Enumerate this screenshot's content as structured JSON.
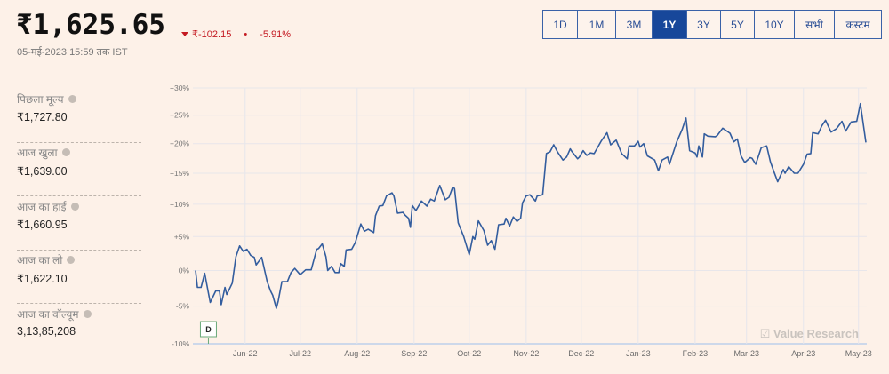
{
  "header": {
    "price": "₹1,625.65",
    "change_abs": "₹-102.15",
    "separator": "•",
    "change_pct": "-5.91%",
    "as_of": "05-मई-2023 15:59 तक IST"
  },
  "ranges": {
    "options": [
      "1D",
      "1M",
      "3M",
      "1Y",
      "3Y",
      "5Y",
      "10Y",
      "सभी",
      "कस्टम"
    ],
    "selected": "1Y"
  },
  "stats": [
    {
      "label": "पिछला मूल्य",
      "value": "₹1,727.80"
    },
    {
      "label": "आज खुला",
      "value": "₹1,639.00"
    },
    {
      "label": "आज का हाई",
      "value": "₹1,660.95"
    },
    {
      "label": "आज का लो",
      "value": "₹1,622.10"
    },
    {
      "label": "आज का वॉल्यूम",
      "value": "3,13,85,208"
    }
  ],
  "colors": {
    "line": "#335d9e",
    "negative": "#c41a22",
    "accent": "#17479a",
    "marker": "#6aaa7a"
  },
  "chart_data": {
    "type": "line",
    "yscale": "log-return",
    "ylim": [
      -10,
      30
    ],
    "y_ticks": [
      "+30%",
      "+25%",
      "+20%",
      "+15%",
      "+10%",
      "+5%",
      "0%",
      "-5%",
      "-10%"
    ],
    "y_tick_values": [
      30,
      25,
      20,
      15,
      10,
      5,
      0,
      -5,
      -10
    ],
    "x_ticks": [
      "Jun-22",
      "Jul-22",
      "Aug-22",
      "Sep-22",
      "Oct-22",
      "Nov-22",
      "Dec-22",
      "Jan-23",
      "Feb-23",
      "Mar-23",
      "Apr-23",
      "May-23"
    ],
    "x_tick_dates": [
      "2022-06-01",
      "2022-07-01",
      "2022-08-01",
      "2022-09-01",
      "2022-10-01",
      "2022-11-01",
      "2022-12-01",
      "2023-01-01",
      "2023-02-01",
      "2023-03-01",
      "2023-04-01",
      "2023-05-01"
    ],
    "xlim": [
      "2022-05-05",
      "2023-05-05"
    ],
    "grid": true,
    "marker": {
      "label": "D",
      "date": "2022-05-12"
    },
    "watermark": "Value Research",
    "series": [
      {
        "points": [
          [
            "2022-05-05",
            0
          ],
          [
            "2022-05-06",
            -2.4
          ],
          [
            "2022-05-08",
            -2.4
          ],
          [
            "2022-05-10",
            -0.4
          ],
          [
            "2022-05-12",
            -3.2
          ],
          [
            "2022-05-13",
            -4.5
          ],
          [
            "2022-05-16",
            -2.9
          ],
          [
            "2022-05-18",
            -2.9
          ],
          [
            "2022-05-19",
            -4.8
          ],
          [
            "2022-05-21",
            -2.4
          ],
          [
            "2022-05-22",
            -3.4
          ],
          [
            "2022-05-25",
            -1.8
          ],
          [
            "2022-05-27",
            2
          ],
          [
            "2022-05-29",
            3.6
          ],
          [
            "2022-05-31",
            2.8
          ],
          [
            "2022-06-02",
            3.1
          ],
          [
            "2022-06-04",
            2.2
          ],
          [
            "2022-06-06",
            1.9
          ],
          [
            "2022-06-07",
            0.8
          ],
          [
            "2022-06-10",
            1.9
          ],
          [
            "2022-06-13",
            -1.6
          ],
          [
            "2022-06-15",
            -3
          ],
          [
            "2022-06-16",
            -3.5
          ],
          [
            "2022-06-18",
            -5.3
          ],
          [
            "2022-06-19",
            -4.3
          ],
          [
            "2022-06-21",
            -1.6
          ],
          [
            "2022-06-24",
            -1.6
          ],
          [
            "2022-06-26",
            -0.3
          ],
          [
            "2022-06-28",
            0.3
          ],
          [
            "2022-07-01",
            -0.6
          ],
          [
            "2022-07-04",
            0.1
          ],
          [
            "2022-07-07",
            0.1
          ],
          [
            "2022-07-10",
            3.1
          ],
          [
            "2022-07-11",
            3.2
          ],
          [
            "2022-07-13",
            3.9
          ],
          [
            "2022-07-15",
            2
          ],
          [
            "2022-07-16",
            0
          ],
          [
            "2022-07-18",
            0.6
          ],
          [
            "2022-07-20",
            -0.3
          ],
          [
            "2022-07-22",
            -0.3
          ],
          [
            "2022-07-23",
            1
          ],
          [
            "2022-07-25",
            0.6
          ],
          [
            "2022-07-26",
            3
          ],
          [
            "2022-07-29",
            3.1
          ],
          [
            "2022-07-31",
            4.1
          ],
          [
            "2022-08-03",
            6.9
          ],
          [
            "2022-08-05",
            5.8
          ],
          [
            "2022-08-07",
            6.1
          ],
          [
            "2022-08-10",
            5.6
          ],
          [
            "2022-08-11",
            8.2
          ],
          [
            "2022-08-13",
            9.7
          ],
          [
            "2022-08-15",
            9.8
          ],
          [
            "2022-08-17",
            11.3
          ],
          [
            "2022-08-20",
            11.8
          ],
          [
            "2022-08-21",
            11.3
          ],
          [
            "2022-08-23",
            8.6
          ],
          [
            "2022-08-26",
            8.7
          ],
          [
            "2022-08-27",
            8.3
          ],
          [
            "2022-08-29",
            7.8
          ],
          [
            "2022-08-30",
            6.4
          ],
          [
            "2022-08-31",
            9.8
          ],
          [
            "2022-09-02",
            9
          ],
          [
            "2022-09-05",
            10.5
          ],
          [
            "2022-09-08",
            9.7
          ],
          [
            "2022-09-10",
            10.8
          ],
          [
            "2022-09-12",
            10.5
          ],
          [
            "2022-09-15",
            13
          ],
          [
            "2022-09-18",
            10.7
          ],
          [
            "2022-09-20",
            11.1
          ],
          [
            "2022-09-22",
            12.7
          ],
          [
            "2022-09-23",
            12.5
          ],
          [
            "2022-09-25",
            7.1
          ],
          [
            "2022-09-28",
            5
          ],
          [
            "2022-10-01",
            2.3
          ],
          [
            "2022-10-03",
            5
          ],
          [
            "2022-10-04",
            4.6
          ],
          [
            "2022-10-06",
            7.4
          ],
          [
            "2022-10-09",
            5.9
          ],
          [
            "2022-10-11",
            3.7
          ],
          [
            "2022-10-13",
            4.4
          ],
          [
            "2022-10-15",
            3.1
          ],
          [
            "2022-10-17",
            6.8
          ],
          [
            "2022-10-20",
            6.9
          ],
          [
            "2022-10-21",
            7.8
          ],
          [
            "2022-10-23",
            6.6
          ],
          [
            "2022-10-25",
            8
          ],
          [
            "2022-10-27",
            7.3
          ],
          [
            "2022-10-29",
            7.8
          ],
          [
            "2022-10-30",
            10.2
          ],
          [
            "2022-11-01",
            11.3
          ],
          [
            "2022-11-03",
            11.5
          ],
          [
            "2022-11-06",
            10.5
          ],
          [
            "2022-11-07",
            11.3
          ],
          [
            "2022-11-10",
            11.5
          ],
          [
            "2022-11-12",
            18.3
          ],
          [
            "2022-11-14",
            18.6
          ],
          [
            "2022-11-16",
            19.8
          ],
          [
            "2022-11-18",
            18.6
          ],
          [
            "2022-11-21",
            17.2
          ],
          [
            "2022-11-23",
            17.7
          ],
          [
            "2022-11-25",
            19.1
          ],
          [
            "2022-11-26",
            18.6
          ],
          [
            "2022-11-29",
            17.4
          ],
          [
            "2022-11-30",
            17.7
          ],
          [
            "2022-12-02",
            18.8
          ],
          [
            "2022-12-04",
            18
          ],
          [
            "2022-12-06",
            18.4
          ],
          [
            "2022-12-08",
            18.3
          ],
          [
            "2022-12-12",
            20.5
          ],
          [
            "2022-12-15",
            21.9
          ],
          [
            "2022-12-17",
            19.8
          ],
          [
            "2022-12-20",
            20.6
          ],
          [
            "2022-12-23",
            18.3
          ],
          [
            "2022-12-26",
            17.4
          ],
          [
            "2022-12-27",
            19.6
          ],
          [
            "2022-12-30",
            19.6
          ],
          [
            "2023-01-01",
            20.4
          ],
          [
            "2023-01-02",
            19.4
          ],
          [
            "2023-01-04",
            20
          ],
          [
            "2023-01-06",
            17.9
          ],
          [
            "2023-01-10",
            17.2
          ],
          [
            "2023-01-12",
            15.4
          ],
          [
            "2023-01-14",
            17.2
          ],
          [
            "2023-01-17",
            17.7
          ],
          [
            "2023-01-18",
            16.5
          ],
          [
            "2023-01-22",
            20.3
          ],
          [
            "2023-01-25",
            22.5
          ],
          [
            "2023-01-27",
            24.5
          ],
          [
            "2023-01-29",
            18.8
          ],
          [
            "2023-02-01",
            18.4
          ],
          [
            "2023-02-02",
            17.7
          ],
          [
            "2023-02-03",
            19.6
          ],
          [
            "2023-02-05",
            17.7
          ],
          [
            "2023-02-06",
            21.7
          ],
          [
            "2023-02-08",
            21.3
          ],
          [
            "2023-02-12",
            21.2
          ],
          [
            "2023-02-13",
            21.4
          ],
          [
            "2023-02-16",
            22.7
          ],
          [
            "2023-02-20",
            21.8
          ],
          [
            "2023-02-22",
            20.3
          ],
          [
            "2023-02-24",
            20.8
          ],
          [
            "2023-02-26",
            17.9
          ],
          [
            "2023-02-28",
            16.8
          ],
          [
            "2023-03-03",
            17.6
          ],
          [
            "2023-03-04",
            17.5
          ],
          [
            "2023-03-06",
            16.5
          ],
          [
            "2023-03-09",
            19.3
          ],
          [
            "2023-03-12",
            19.6
          ],
          [
            "2023-03-14",
            16.9
          ],
          [
            "2023-03-16",
            15.2
          ],
          [
            "2023-03-18",
            13.6
          ],
          [
            "2023-03-21",
            15.6
          ],
          [
            "2023-03-22",
            15
          ],
          [
            "2023-03-24",
            16.1
          ],
          [
            "2023-03-27",
            15
          ],
          [
            "2023-03-29",
            15
          ],
          [
            "2023-04-01",
            16.5
          ],
          [
            "2023-04-03",
            18.2
          ],
          [
            "2023-04-05",
            18.3
          ],
          [
            "2023-04-06",
            21.9
          ],
          [
            "2023-04-09",
            21.7
          ],
          [
            "2023-04-11",
            23.1
          ],
          [
            "2023-04-13",
            24.1
          ],
          [
            "2023-04-16",
            22
          ],
          [
            "2023-04-19",
            22.6
          ],
          [
            "2023-04-22",
            23.9
          ],
          [
            "2023-04-24",
            22.2
          ],
          [
            "2023-04-27",
            23.8
          ],
          [
            "2023-04-30",
            23.9
          ],
          [
            "2023-05-02",
            27.1
          ],
          [
            "2023-05-05",
            20.2
          ]
        ]
      }
    ]
  }
}
